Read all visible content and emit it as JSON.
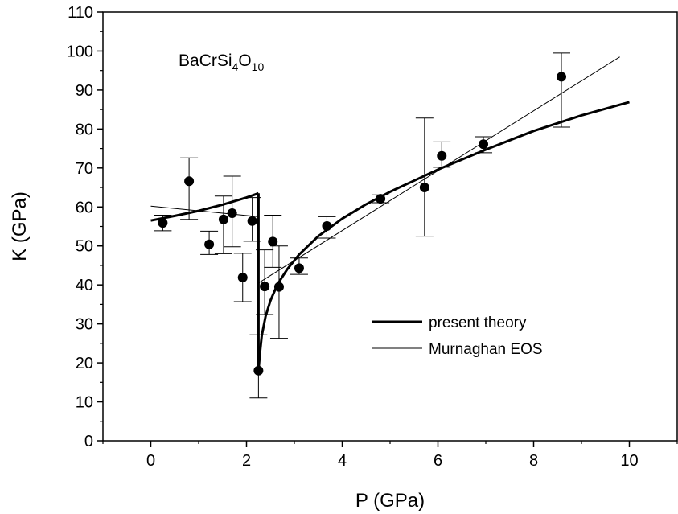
{
  "chart_data": {
    "type": "scatter",
    "title": "",
    "xlabel": "P (GPa)",
    "ylabel": "K (GPa)",
    "xlim": [
      -1,
      11
    ],
    "ylim": [
      0,
      110
    ],
    "xticks": [
      0,
      2,
      4,
      6,
      8,
      10
    ],
    "yticks": [
      0,
      10,
      20,
      30,
      40,
      50,
      60,
      70,
      80,
      90,
      100,
      110
    ],
    "grid": false,
    "legend_position": "bottom-right",
    "annotation": {
      "base": "BaCrSi",
      "sub1": "4",
      "mid": "O",
      "sub2": "10"
    },
    "points": [
      {
        "x": 0.25,
        "y": 55.9,
        "err_low": 2.0,
        "err_high": 2.0
      },
      {
        "x": 0.8,
        "y": 66.6,
        "err_low": 9.8,
        "err_high": 6.0
      },
      {
        "x": 1.22,
        "y": 50.4,
        "err_low": 2.6,
        "err_high": 3.4
      },
      {
        "x": 1.52,
        "y": 56.8,
        "err_low": 8.8,
        "err_high": 6.0
      },
      {
        "x": 1.7,
        "y": 58.4,
        "err_low": 8.6,
        "err_high": 9.5
      },
      {
        "x": 1.92,
        "y": 41.9,
        "err_low": 6.2,
        "err_high": 6.2
      },
      {
        "x": 2.12,
        "y": 56.4,
        "err_low": 5.2,
        "err_high": 6.0
      },
      {
        "x": 2.25,
        "y": 18.0,
        "err_low": 7.0,
        "err_high": 9.2
      },
      {
        "x": 2.38,
        "y": 39.6,
        "err_low": 7.2,
        "err_high": 9.4
      },
      {
        "x": 2.55,
        "y": 51.1,
        "err_low": 6.6,
        "err_high": 6.8
      },
      {
        "x": 2.68,
        "y": 39.5,
        "err_low": 13.2,
        "err_high": 10.5
      },
      {
        "x": 3.1,
        "y": 44.3,
        "err_low": 1.6,
        "err_high": 2.6
      },
      {
        "x": 3.68,
        "y": 55.1,
        "err_low": 3.1,
        "err_high": 2.4
      },
      {
        "x": 4.8,
        "y": 62.1,
        "err_low": 1.0,
        "err_high": 1.0
      },
      {
        "x": 5.72,
        "y": 65.0,
        "err_low": 12.5,
        "err_high": 17.8
      },
      {
        "x": 6.08,
        "y": 73.1,
        "err_low": 2.9,
        "err_high": 3.6
      },
      {
        "x": 6.95,
        "y": 76.1,
        "err_low": 2.2,
        "err_high": 1.9
      },
      {
        "x": 8.58,
        "y": 93.4,
        "err_low": 12.9,
        "err_high": 6.1
      }
    ],
    "series": [
      {
        "name": "present theory",
        "style": "thick",
        "segments": [
          {
            "x": [
              0.0,
              0.5,
              1.0,
              1.5,
              2.0,
              2.25
            ],
            "y": [
              56.5,
              57.7,
              59.0,
              60.6,
              62.4,
              63.5
            ]
          },
          {
            "x": [
              2.25,
              2.25
            ],
            "y": [
              63.5,
              18.0
            ]
          },
          {
            "x": [
              2.25,
              2.28,
              2.32,
              2.4,
              2.5,
              2.65,
              2.85,
              3.1,
              3.5,
              4.0,
              4.5,
              5.0,
              6.0,
              7.0,
              8.0,
              9.0,
              10.0
            ],
            "y": [
              18.0,
              22.5,
              27.0,
              32.0,
              36.0,
              40.2,
              44.0,
              47.8,
              52.5,
              57.0,
              60.7,
              63.9,
              69.6,
              74.7,
              79.5,
              83.5,
              86.9
            ]
          }
        ]
      },
      {
        "name": "Murnaghan EOS",
        "style": "thin",
        "segments": [
          {
            "x": [
              0.0,
              2.25
            ],
            "y": [
              60.2,
              57.5
            ]
          },
          {
            "x": [
              2.25,
              9.8
            ],
            "y": [
              40.5,
              98.5
            ]
          }
        ]
      }
    ]
  }
}
